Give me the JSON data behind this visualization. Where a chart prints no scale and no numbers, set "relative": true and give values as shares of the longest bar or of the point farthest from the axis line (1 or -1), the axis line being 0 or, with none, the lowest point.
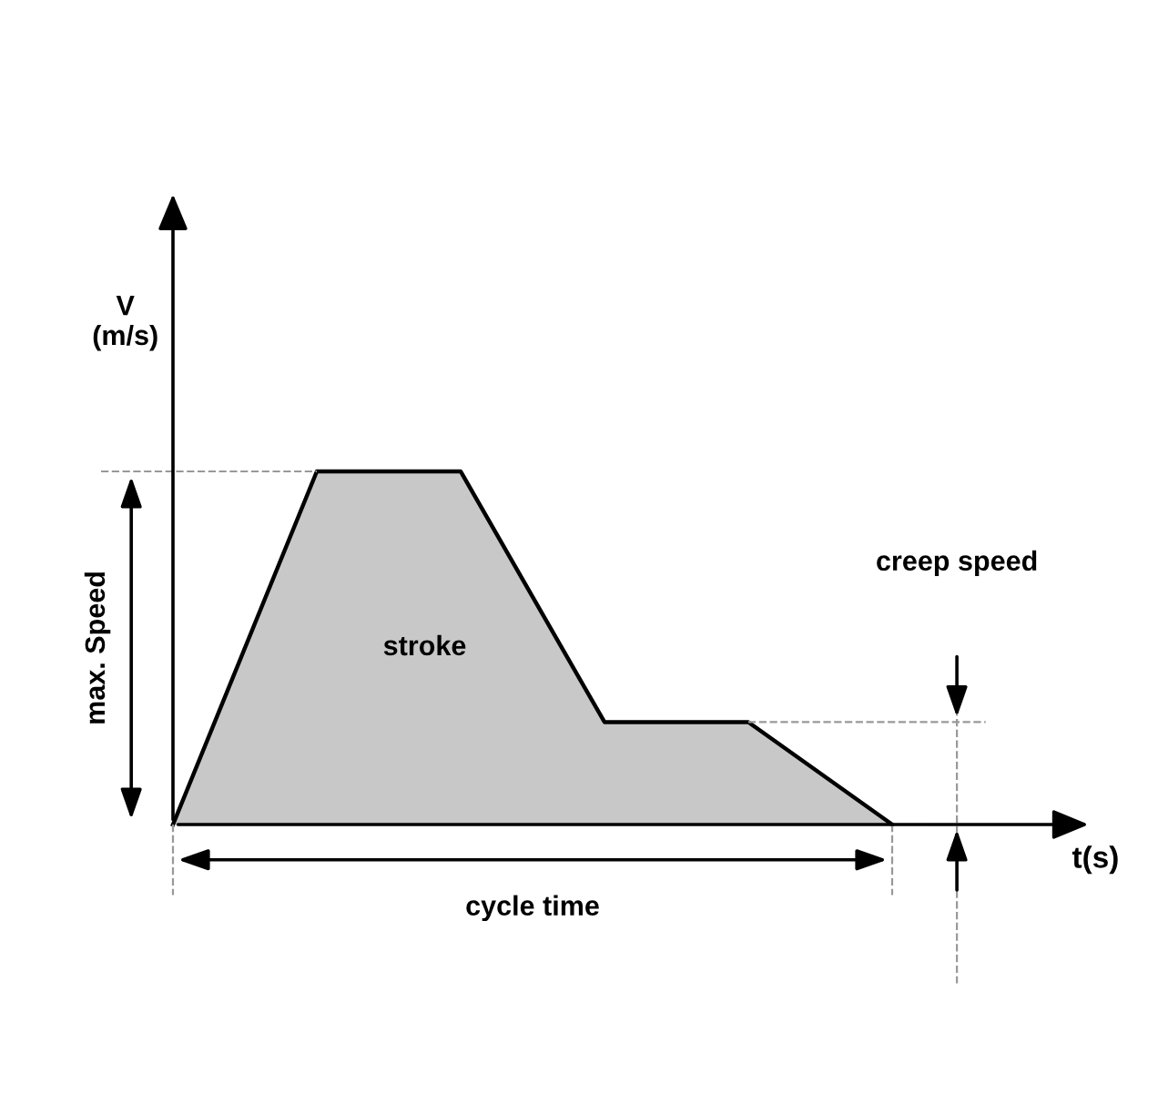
{
  "chart_data": {
    "type": "area",
    "relative": true,
    "categories": [
      null,
      null,
      null,
      null,
      null,
      null
    ],
    "values": [
      0,
      1,
      1,
      0.29,
      0.29,
      0
    ],
    "color": "#c8c8c8",
    "xlabel": "t(s)",
    "ylabel": "V\n(m/s)",
    "annotations": [
      "max. Speed",
      "creep speed",
      "cycle time",
      "stroke"
    ]
  }
}
